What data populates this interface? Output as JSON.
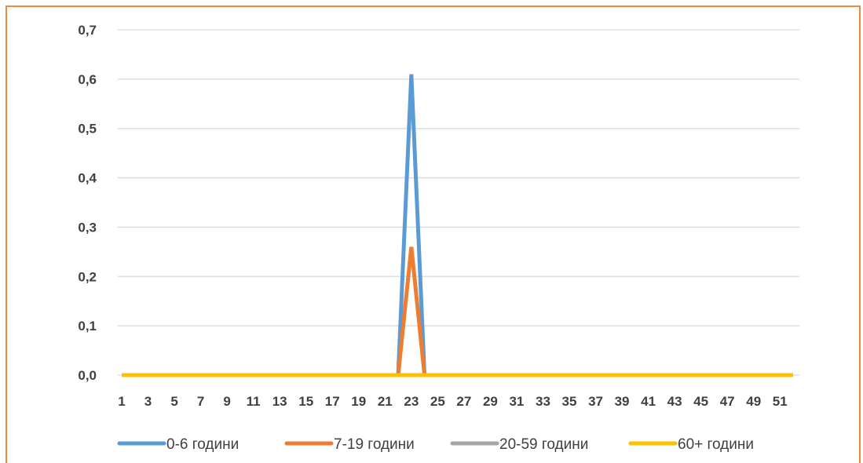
{
  "chart_data": {
    "type": "line",
    "title": "",
    "xlabel": "",
    "ylabel": "",
    "x": [
      1,
      2,
      3,
      4,
      5,
      6,
      7,
      8,
      9,
      10,
      11,
      12,
      13,
      14,
      15,
      16,
      17,
      18,
      19,
      20,
      21,
      22,
      23,
      24,
      25,
      26,
      27,
      28,
      29,
      30,
      31,
      32,
      33,
      34,
      35,
      36,
      37,
      38,
      39,
      40,
      41,
      42,
      43,
      44,
      45,
      46,
      47,
      48,
      49,
      50,
      51,
      52
    ],
    "x_tick_labels": [
      "1",
      "3",
      "5",
      "7",
      "9",
      "11",
      "13",
      "15",
      "17",
      "19",
      "21",
      "23",
      "25",
      "27",
      "29",
      "31",
      "33",
      "35",
      "37",
      "39",
      "41",
      "43",
      "45",
      "47",
      "49",
      "51"
    ],
    "y_tick_labels": [
      "0,0",
      "0,1",
      "0,2",
      "0,3",
      "0,4",
      "0,5",
      "0,6",
      "0,7"
    ],
    "ylim": [
      0,
      0.7
    ],
    "grid": true,
    "legend_position": "bottom",
    "series": [
      {
        "name": "0-6 години",
        "color": "#5b9bd5",
        "values": [
          0,
          0,
          0,
          0,
          0,
          0,
          0,
          0,
          0,
          0,
          0,
          0,
          0,
          0,
          0,
          0,
          0,
          0,
          0,
          0,
          0,
          0,
          0.61,
          0,
          0,
          0,
          0,
          0,
          0,
          0,
          0,
          0,
          0,
          0,
          0,
          0,
          0,
          0,
          0,
          0,
          0,
          0,
          0,
          0,
          0,
          0,
          0,
          0,
          0,
          0,
          0,
          0
        ]
      },
      {
        "name": "7-19 години",
        "color": "#ed7d31",
        "values": [
          0,
          0,
          0,
          0,
          0,
          0,
          0,
          0,
          0,
          0,
          0,
          0,
          0,
          0,
          0,
          0,
          0,
          0,
          0,
          0,
          0,
          0,
          0.26,
          0,
          0,
          0,
          0,
          0,
          0,
          0,
          0,
          0,
          0,
          0,
          0,
          0,
          0,
          0,
          0,
          0,
          0,
          0,
          0,
          0,
          0,
          0,
          0,
          0,
          0,
          0,
          0,
          0
        ]
      },
      {
        "name": "20-59 години",
        "color": "#a5a5a5",
        "values": [
          0,
          0,
          0,
          0,
          0,
          0,
          0,
          0,
          0,
          0,
          0,
          0,
          0,
          0,
          0,
          0,
          0,
          0,
          0,
          0,
          0,
          0,
          0,
          0,
          0,
          0,
          0,
          0,
          0,
          0,
          0,
          0,
          0,
          0,
          0,
          0,
          0,
          0,
          0,
          0,
          0,
          0,
          0,
          0,
          0,
          0,
          0,
          0,
          0,
          0,
          0,
          0
        ]
      },
      {
        "name": "60+ години",
        "color": "#ffc000",
        "values": [
          0,
          0,
          0,
          0,
          0,
          0,
          0,
          0,
          0,
          0,
          0,
          0,
          0,
          0,
          0,
          0,
          0,
          0,
          0,
          0,
          0,
          0,
          0,
          0,
          0,
          0,
          0,
          0,
          0,
          0,
          0,
          0,
          0,
          0,
          0,
          0,
          0,
          0,
          0,
          0,
          0,
          0,
          0,
          0,
          0,
          0,
          0,
          0,
          0,
          0,
          0,
          0
        ]
      }
    ]
  }
}
